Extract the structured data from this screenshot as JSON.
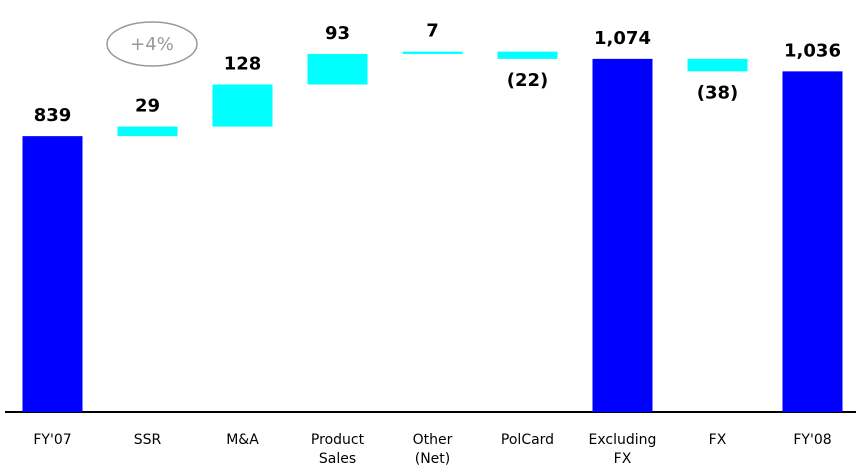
{
  "chart_data": {
    "type": "waterfall",
    "categories": [
      "FY'07",
      "SSR",
      "M&A",
      "Product Sales",
      "Other (Net)",
      "PolCard",
      "Excluding FX",
      "FX",
      "FY'08"
    ],
    "values": [
      839,
      29,
      128,
      93,
      7,
      -22,
      1074,
      -38,
      1036
    ],
    "value_labels": [
      "839",
      "29",
      "128",
      "93",
      "7",
      "(22)",
      "1,074",
      "(38)",
      "1,036"
    ],
    "colors": [
      "#0000ff",
      "#00ffff",
      "#00ffff",
      "#00ffff",
      "#00ffff",
      "#00ffff",
      "#0000ff",
      "#00ffff",
      "#0000ff"
    ],
    "ylim": [
      0,
      1250
    ],
    "annotations": [
      {
        "text": "+4%"
      }
    ]
  }
}
